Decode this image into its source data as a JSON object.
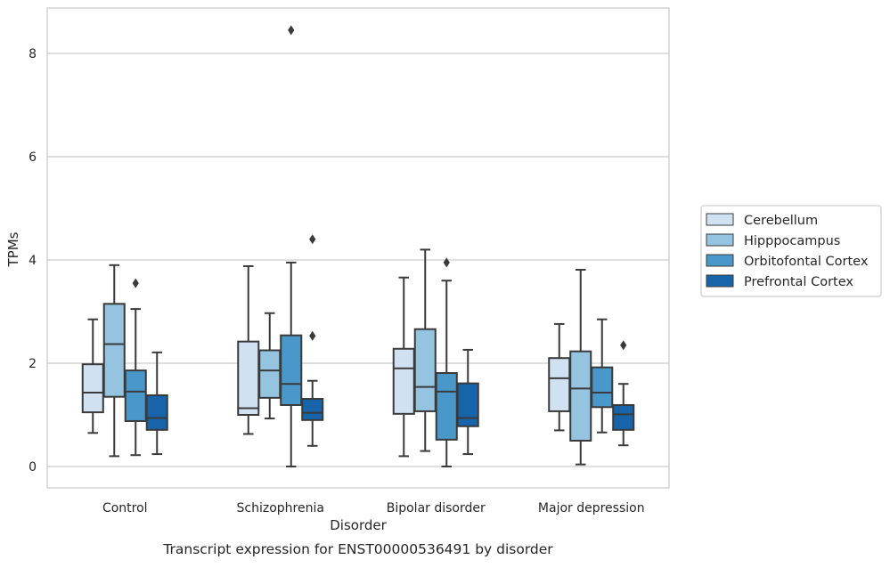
{
  "chart_data": {
    "type": "box",
    "caption": "Transcript expression for ENST00000536491 by disorder",
    "xlabel": "Disorder",
    "ylabel": "TPMs",
    "ylim": [
      -0.4,
      8.9
    ],
    "yticks": [
      0,
      2,
      4,
      6,
      8
    ],
    "grid": true,
    "legend_position": "right-center",
    "categories": [
      "Control",
      "Schizophrenia",
      "Bipolar disorder",
      "Major depression"
    ],
    "series": [
      {
        "name": "Cerebellum",
        "color": "#d0e1f2",
        "boxes": [
          {
            "whisker_low": 0.65,
            "q1": 1.05,
            "median": 1.43,
            "q3": 1.98,
            "whisker_high": 2.85,
            "outliers": []
          },
          {
            "whisker_low": 0.63,
            "q1": 1.0,
            "median": 1.13,
            "q3": 2.42,
            "whisker_high": 3.88,
            "outliers": []
          },
          {
            "whisker_low": 0.2,
            "q1": 1.02,
            "median": 1.9,
            "q3": 2.28,
            "whisker_high": 3.66,
            "outliers": []
          },
          {
            "whisker_low": 0.7,
            "q1": 1.07,
            "median": 1.71,
            "q3": 2.1,
            "whisker_high": 2.76,
            "outliers": []
          }
        ]
      },
      {
        "name": "Hipppocampus",
        "color": "#94c4df",
        "boxes": [
          {
            "whisker_low": 0.2,
            "q1": 1.35,
            "median": 2.37,
            "q3": 3.15,
            "whisker_high": 3.9,
            "outliers": []
          },
          {
            "whisker_low": 0.93,
            "q1": 1.33,
            "median": 1.86,
            "q3": 2.25,
            "whisker_high": 2.97,
            "outliers": []
          },
          {
            "whisker_low": 0.3,
            "q1": 1.07,
            "median": 1.54,
            "q3": 2.66,
            "whisker_high": 4.2,
            "outliers": []
          },
          {
            "whisker_low": 0.04,
            "q1": 0.5,
            "median": 1.51,
            "q3": 2.23,
            "whisker_high": 3.81,
            "outliers": []
          }
        ]
      },
      {
        "name": "Orbitofontal Cortex",
        "color": "#4a98c9",
        "boxes": [
          {
            "whisker_low": 0.22,
            "q1": 0.88,
            "median": 1.45,
            "q3": 1.86,
            "whisker_high": 3.05,
            "outliers": [
              3.55
            ]
          },
          {
            "whisker_low": 0.0,
            "q1": 1.19,
            "median": 1.6,
            "q3": 2.54,
            "whisker_high": 3.95,
            "outliers": [
              8.45
            ]
          },
          {
            "whisker_low": 0.0,
            "q1": 0.52,
            "median": 1.45,
            "q3": 1.81,
            "whisker_high": 3.6,
            "outliers": [
              3.95
            ]
          },
          {
            "whisker_low": 0.66,
            "q1": 1.15,
            "median": 1.43,
            "q3": 1.92,
            "whisker_high": 2.85,
            "outliers": []
          }
        ]
      },
      {
        "name": "Prefrontal Cortex",
        "color": "#1764ab",
        "boxes": [
          {
            "whisker_low": 0.24,
            "q1": 0.71,
            "median": 0.94,
            "q3": 1.38,
            "whisker_high": 2.21,
            "outliers": []
          },
          {
            "whisker_low": 0.4,
            "q1": 0.9,
            "median": 1.04,
            "q3": 1.31,
            "whisker_high": 1.66,
            "outliers": [
              4.4,
              2.53
            ]
          },
          {
            "whisker_low": 0.24,
            "q1": 0.78,
            "median": 0.94,
            "q3": 1.61,
            "whisker_high": 2.26,
            "outliers": []
          },
          {
            "whisker_low": 0.41,
            "q1": 0.71,
            "median": 1.01,
            "q3": 1.19,
            "whisker_high": 1.6,
            "outliers": [
              2.35
            ]
          }
        ]
      }
    ]
  }
}
